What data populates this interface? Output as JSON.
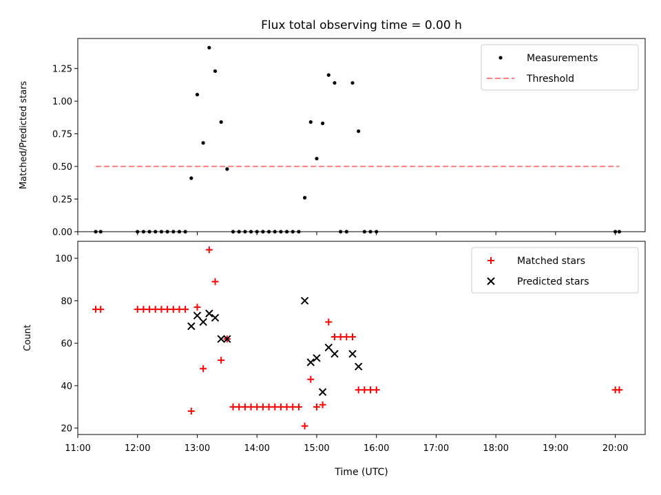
{
  "chart_data": [
    {
      "type": "scatter",
      "title": "Flux total observing time = 0.00 h",
      "xlabel": "",
      "ylabel": "Matched/Predicted stars",
      "ylim": [
        0,
        1.48
      ],
      "xlim": [
        "11:00",
        "20:30"
      ],
      "yticks": [
        "0.00",
        "0.25",
        "0.50",
        "0.75",
        "1.00",
        "1.25"
      ],
      "ytick_values": [
        0,
        0.25,
        0.5,
        0.75,
        1.0,
        1.25
      ],
      "legend_position": "top-right",
      "series": [
        {
          "name": "Measurements",
          "marker": "dot",
          "color": "#000000",
          "points": [
            [
              "11:18",
              0
            ],
            [
              "11:23",
              0
            ],
            [
              "12:00",
              0
            ],
            [
              "12:06",
              0
            ],
            [
              "12:12",
              0
            ],
            [
              "12:18",
              0
            ],
            [
              "12:24",
              0
            ],
            [
              "12:30",
              0
            ],
            [
              "12:36",
              0
            ],
            [
              "12:42",
              0
            ],
            [
              "12:48",
              0
            ],
            [
              "12:54",
              0.41
            ],
            [
              "13:00",
              1.05
            ],
            [
              "13:06",
              0.68
            ],
            [
              "13:12",
              1.41
            ],
            [
              "13:18",
              1.23
            ],
            [
              "13:24",
              0.84
            ],
            [
              "13:30",
              0.48
            ],
            [
              "13:36",
              0
            ],
            [
              "13:42",
              0
            ],
            [
              "13:48",
              0
            ],
            [
              "13:54",
              0
            ],
            [
              "14:00",
              0
            ],
            [
              "14:06",
              0
            ],
            [
              "14:12",
              0
            ],
            [
              "14:18",
              0
            ],
            [
              "14:24",
              0
            ],
            [
              "14:30",
              0
            ],
            [
              "14:36",
              0
            ],
            [
              "14:42",
              0
            ],
            [
              "14:48",
              0.26
            ],
            [
              "14:54",
              0.84
            ],
            [
              "15:00",
              0.56
            ],
            [
              "15:06",
              0.83
            ],
            [
              "15:12",
              1.2
            ],
            [
              "15:18",
              1.14
            ],
            [
              "15:24",
              0
            ],
            [
              "15:30",
              0
            ],
            [
              "15:36",
              1.14
            ],
            [
              "15:42",
              0.77
            ],
            [
              "15:48",
              0
            ],
            [
              "15:54",
              0
            ],
            [
              "16:00",
              0
            ],
            [
              "20:00",
              0
            ],
            [
              "20:04",
              0
            ]
          ]
        },
        {
          "name": "Threshold",
          "marker": "dashed-line",
          "color": "#ff7f7f",
          "points": [
            [
              "11:18",
              0.5
            ],
            [
              "20:04",
              0.5
            ]
          ]
        }
      ]
    },
    {
      "type": "scatter",
      "title": "",
      "xlabel": "Time (UTC)",
      "ylabel": "Count",
      "ylim": [
        17,
        108
      ],
      "xlim": [
        "11:00",
        "20:30"
      ],
      "xticks": [
        "11:00",
        "12:00",
        "13:00",
        "14:00",
        "15:00",
        "16:00",
        "17:00",
        "18:00",
        "19:00",
        "20:00"
      ],
      "yticks": [
        "20",
        "40",
        "60",
        "80",
        "100"
      ],
      "ytick_values": [
        20,
        40,
        60,
        80,
        100
      ],
      "legend_position": "top-right",
      "series": [
        {
          "name": "Matched stars",
          "marker": "plus",
          "color": "#ff0000",
          "points": [
            [
              "11:18",
              76
            ],
            [
              "11:23",
              76
            ],
            [
              "12:00",
              76
            ],
            [
              "12:06",
              76
            ],
            [
              "12:12",
              76
            ],
            [
              "12:18",
              76
            ],
            [
              "12:24",
              76
            ],
            [
              "12:30",
              76
            ],
            [
              "12:36",
              76
            ],
            [
              "12:42",
              76
            ],
            [
              "12:48",
              76
            ],
            [
              "12:54",
              28
            ],
            [
              "13:00",
              77
            ],
            [
              "13:06",
              48
            ],
            [
              "13:12",
              104
            ],
            [
              "13:18",
              89
            ],
            [
              "13:24",
              52
            ],
            [
              "13:30",
              62
            ],
            [
              "13:36",
              30
            ],
            [
              "13:42",
              30
            ],
            [
              "13:48",
              30
            ],
            [
              "13:54",
              30
            ],
            [
              "14:00",
              30
            ],
            [
              "14:06",
              30
            ],
            [
              "14:12",
              30
            ],
            [
              "14:18",
              30
            ],
            [
              "14:24",
              30
            ],
            [
              "14:30",
              30
            ],
            [
              "14:36",
              30
            ],
            [
              "14:42",
              30
            ],
            [
              "14:48",
              21
            ],
            [
              "14:54",
              43
            ],
            [
              "15:00",
              30
            ],
            [
              "15:06",
              31
            ],
            [
              "15:12",
              70
            ],
            [
              "15:18",
              63
            ],
            [
              "15:24",
              63
            ],
            [
              "15:30",
              63
            ],
            [
              "15:36",
              63
            ],
            [
              "15:42",
              38
            ],
            [
              "15:48",
              38
            ],
            [
              "15:54",
              38
            ],
            [
              "16:00",
              38
            ],
            [
              "20:00",
              38
            ],
            [
              "20:04",
              38
            ]
          ]
        },
        {
          "name": "Predicted stars",
          "marker": "x",
          "color": "#000000",
          "points": [
            [
              "12:54",
              68
            ],
            [
              "13:00",
              73
            ],
            [
              "13:06",
              70
            ],
            [
              "13:12",
              74
            ],
            [
              "13:18",
              72
            ],
            [
              "13:24",
              62
            ],
            [
              "13:30",
              62
            ],
            [
              "14:48",
              80
            ],
            [
              "14:54",
              51
            ],
            [
              "15:00",
              53
            ],
            [
              "15:06",
              37
            ],
            [
              "15:12",
              58
            ],
            [
              "15:18",
              55
            ],
            [
              "15:36",
              55
            ],
            [
              "15:42",
              49
            ]
          ]
        }
      ]
    }
  ]
}
